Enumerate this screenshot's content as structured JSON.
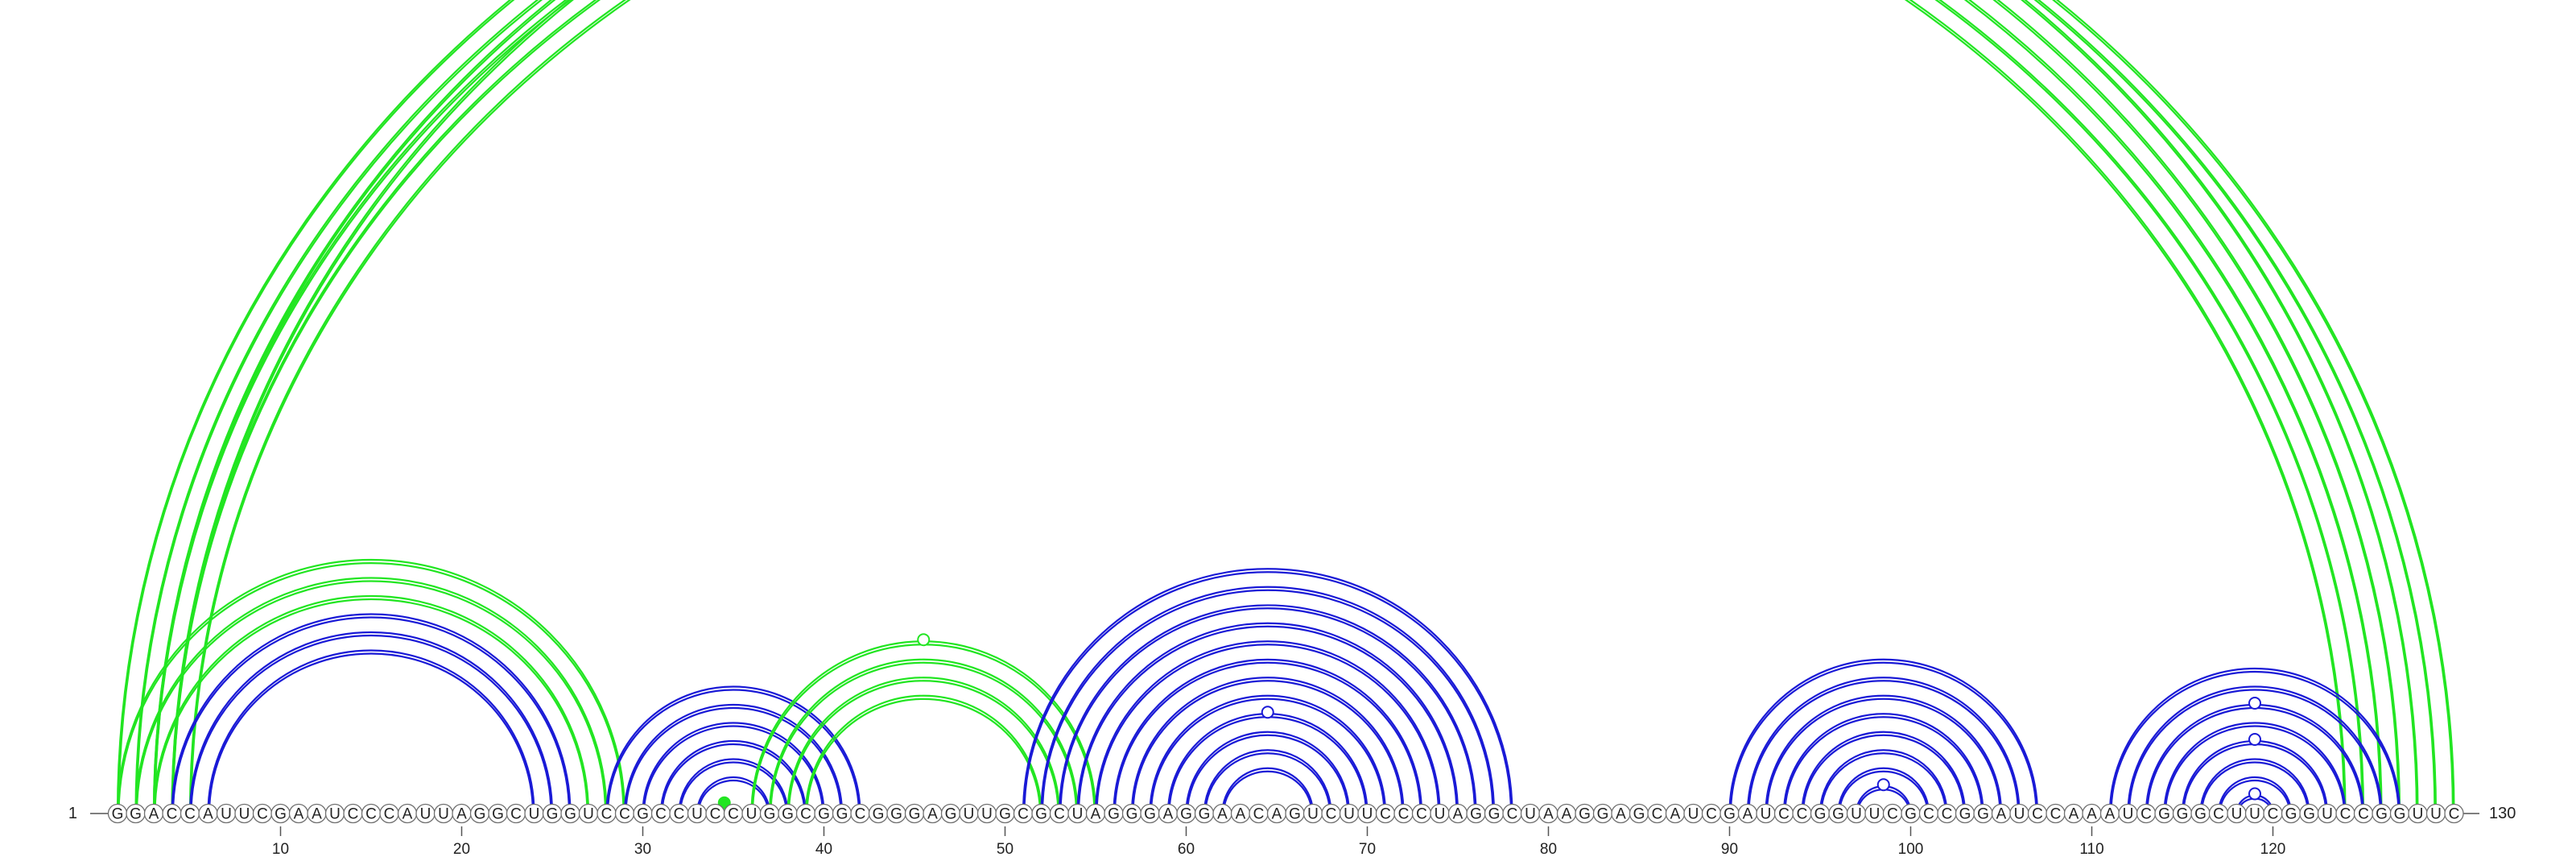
{
  "diagram": {
    "sequence": "GGACCAUUCGAAUCCCAUUAGGCUGGUCCGCCUCCUGGCGGCGGGAGUUGCGCUAGGGAGGAACAGUCUUCCCUAGGCUAAGGAGCAUCGAUCCGGUUCGCCGGAUCCAAAUCGGGCUUCGGUCCGGUUC",
    "start_label": "1",
    "end_label": "130",
    "tick_positions": [
      10,
      20,
      30,
      40,
      50,
      60,
      70,
      80,
      90,
      100,
      110,
      120
    ],
    "tick_labels": [
      "10",
      "20",
      "30",
      "40",
      "50",
      "60",
      "70",
      "80",
      "90",
      "100",
      "110",
      "120"
    ],
    "colors": {
      "green": "#22e522",
      "blue": "#1a1ad6"
    },
    "arc_groups": [
      {
        "color": "green",
        "pairs": [
          [
            1,
            128
          ],
          [
            2,
            127
          ],
          [
            3,
            126
          ],
          [
            4,
            125
          ],
          [
            5,
            124
          ]
        ],
        "doubled": true
      },
      {
        "color": "green",
        "pairs": [
          [
            3,
            129
          ],
          [
            4,
            130
          ]
        ],
        "doubled": true
      },
      {
        "color": "green",
        "pairs": [
          [
            1,
            29
          ],
          [
            2,
            28
          ],
          [
            3,
            27
          ]
        ],
        "doubled": true
      },
      {
        "color": "blue",
        "pairs": [
          [
            4,
            26
          ],
          [
            5,
            25
          ],
          [
            6,
            24
          ]
        ],
        "doubled": true
      },
      {
        "color": "blue",
        "pairs": [
          [
            28,
            42
          ],
          [
            29,
            41
          ],
          [
            30,
            40
          ],
          [
            31,
            39
          ],
          [
            32,
            38
          ],
          [
            33,
            37
          ]
        ],
        "doubled": true
      },
      {
        "color": "green",
        "pairs": [
          [
            34,
            35
          ]
        ],
        "doubled": false
      },
      {
        "color": "green",
        "pairs": [
          [
            36,
            55
          ],
          [
            37,
            54
          ],
          [
            38,
            53
          ],
          [
            39,
            52
          ]
        ],
        "doubled": true
      },
      {
        "color": "blue",
        "pairs": [
          [
            51,
            78
          ],
          [
            52,
            77
          ],
          [
            53,
            76
          ],
          [
            54,
            75
          ],
          [
            55,
            74
          ],
          [
            56,
            73
          ],
          [
            57,
            72
          ],
          [
            58,
            71
          ],
          [
            59,
            70
          ],
          [
            60,
            69
          ],
          [
            61,
            68
          ],
          [
            62,
            67
          ]
        ],
        "doubled": true
      },
      {
        "color": "blue",
        "pairs": [
          [
            90,
            107
          ],
          [
            91,
            106
          ],
          [
            92,
            105
          ],
          [
            93,
            104
          ],
          [
            94,
            103
          ],
          [
            95,
            102
          ],
          [
            96,
            101
          ],
          [
            97,
            100
          ]
        ],
        "doubled": true
      },
      {
        "color": "blue",
        "pairs": [
          [
            111,
            127
          ],
          [
            112,
            126
          ],
          [
            113,
            125
          ],
          [
            114,
            124
          ],
          [
            115,
            123
          ],
          [
            116,
            122
          ],
          [
            117,
            121
          ],
          [
            118,
            120
          ]
        ],
        "doubled": true
      }
    ],
    "markers": [
      {
        "between": [
          3,
          129
        ],
        "color": "green",
        "filled": false
      },
      {
        "between": [
          36,
          55
        ],
        "color": "green",
        "filled": false
      },
      {
        "between": [
          34,
          35
        ],
        "color": "green",
        "filled": true
      },
      {
        "between": [
          59,
          70
        ],
        "color": "blue",
        "filled": false
      },
      {
        "between": [
          97,
          100
        ],
        "color": "blue",
        "filled": false
      },
      {
        "between": [
          113,
          125
        ],
        "color": "blue",
        "filled": false
      },
      {
        "between": [
          115,
          123
        ],
        "color": "blue",
        "filled": false
      },
      {
        "between": [
          118,
          120
        ],
        "color": "blue",
        "filled": false
      }
    ]
  }
}
